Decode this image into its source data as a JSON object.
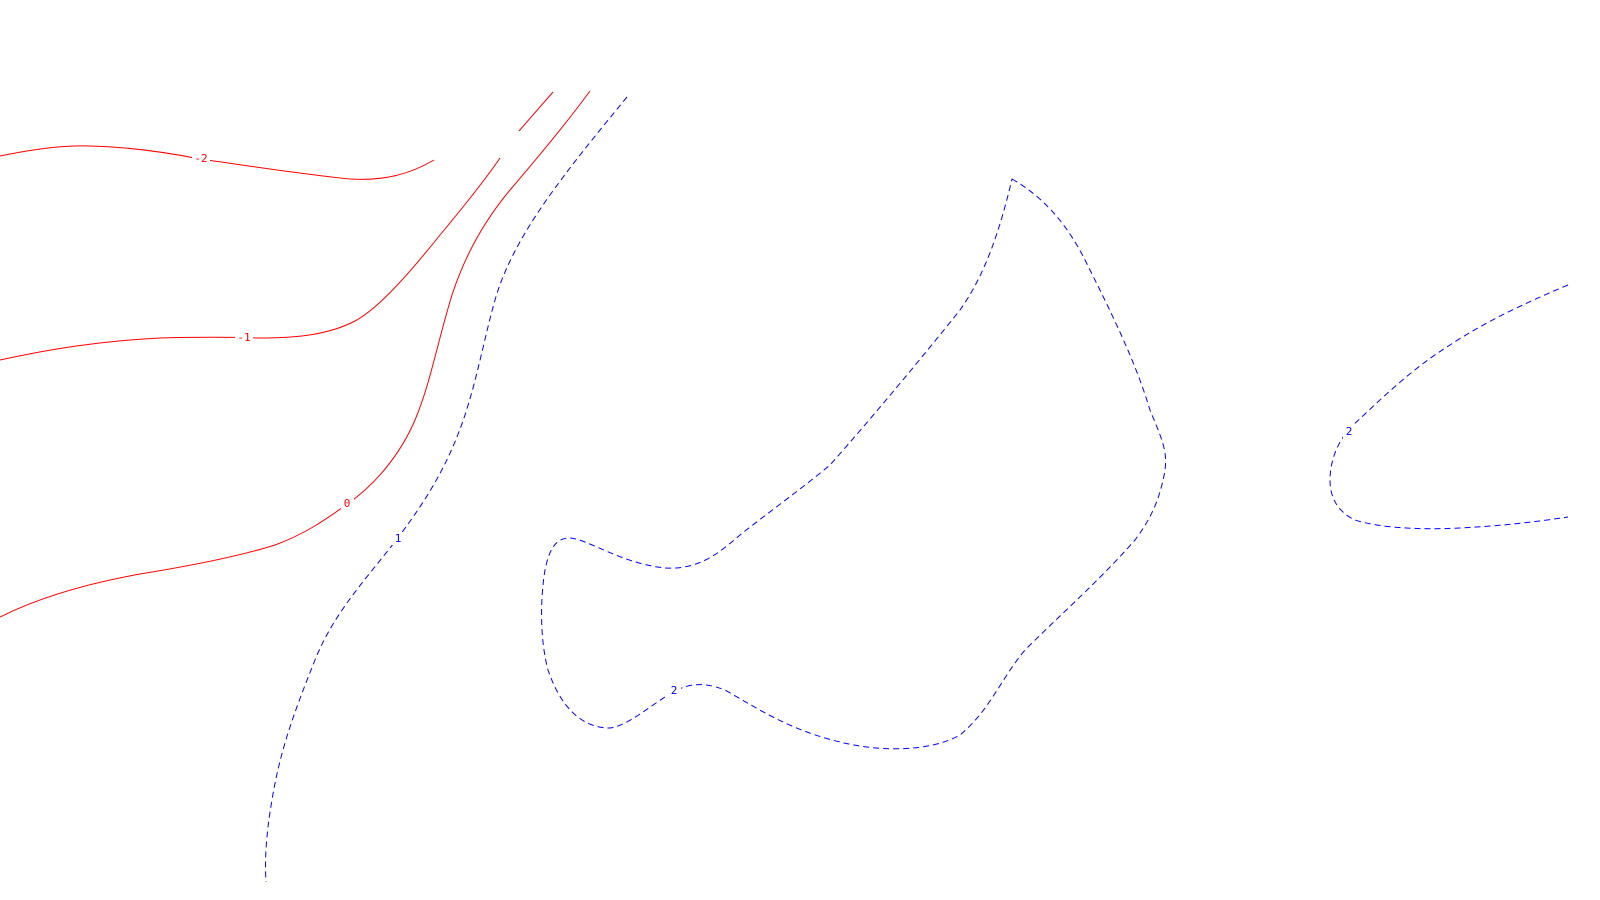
{
  "chart_data": {
    "type": "contour",
    "title": "",
    "xlabel": "",
    "ylabel": "",
    "grid": false,
    "colors": {
      "negative_and_zero": "#ff0000",
      "positive": "#0000ff",
      "background": "#ffffff"
    },
    "levels": [
      {
        "value": -2,
        "label": "-2",
        "color": "#ff0000",
        "style": "solid"
      },
      {
        "value": -1,
        "label": "-1",
        "color": "#ff0000",
        "style": "solid"
      },
      {
        "value": 0,
        "label": "0",
        "color": "#ff0000",
        "style": "solid"
      },
      {
        "value": 1,
        "label": "1",
        "color": "#0000ff",
        "style": "dashed"
      },
      {
        "value": 2,
        "label": "2",
        "color": "#0000ff",
        "style": "dashed"
      }
    ]
  }
}
